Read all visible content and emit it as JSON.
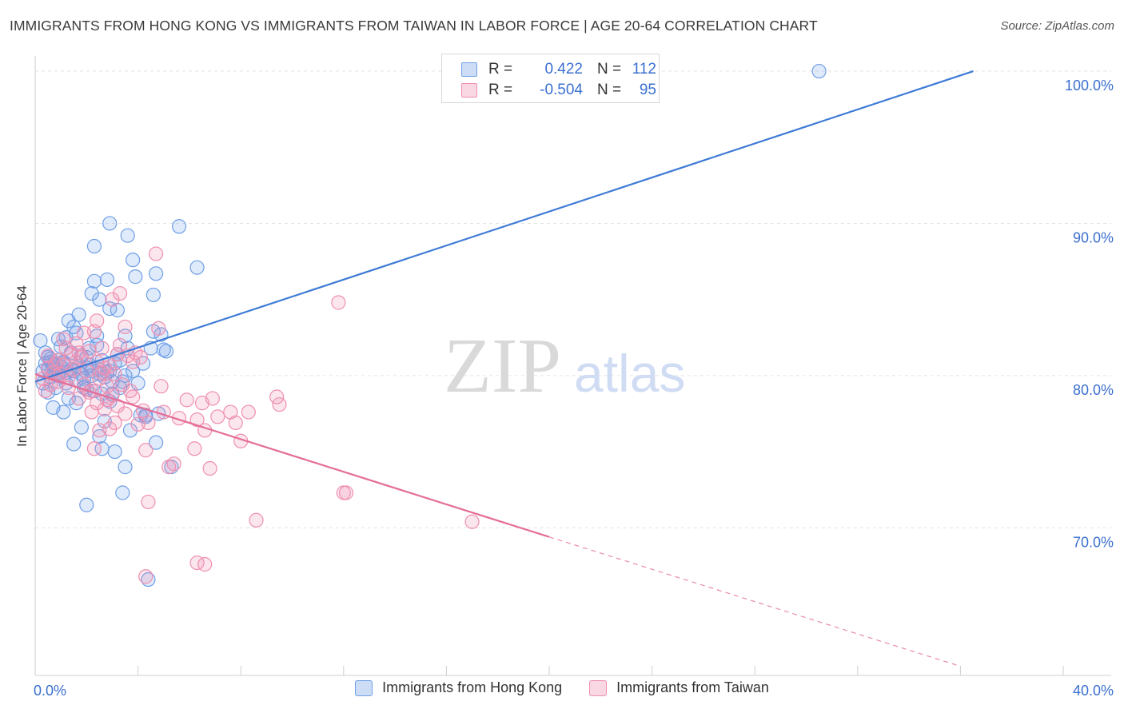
{
  "title": "IMMIGRANTS FROM HONG KONG VS IMMIGRANTS FROM TAIWAN IN LABOR FORCE | AGE 20-64 CORRELATION CHART",
  "source": "Source: ZipAtlas.com",
  "watermark": {
    "zip": "ZIP",
    "atlas": "atlas"
  },
  "legend_top": {
    "rows": [
      {
        "r_label": "R =",
        "r_value": "0.422",
        "n_label": "N =",
        "n_value": "112",
        "color": "#6f9fe6"
      },
      {
        "r_label": "R =",
        "r_value": "-0.504",
        "n_label": "N =",
        "n_value": "95",
        "color": "#ef8fb0"
      }
    ]
  },
  "chart_data": {
    "type": "scatter",
    "title": "IMMIGRANTS FROM HONG KONG VS IMMIGRANTS FROM TAIWAN IN LABOR FORCE | AGE 20-64 CORRELATION CHART",
    "xlabel": "",
    "ylabel": "In Labor Force | Age 20-64",
    "xlim": [
      0,
      40
    ],
    "ylim": [
      60.3,
      101.0
    ],
    "x_tick_labels": [
      "0.0%",
      "40.0%"
    ],
    "y_ticks": [
      70,
      80,
      90,
      100
    ],
    "y_tick_labels": [
      "70.0%",
      "80.0%",
      "90.0%",
      "100.0%"
    ],
    "grid": true,
    "legend_placement": "bottom",
    "series": [
      {
        "name": "Immigrants from Hong Kong",
        "color": "#6f9fe6",
        "r": 0.422,
        "n": 112,
        "trend": {
          "x": [
            0,
            36.5
          ],
          "y": [
            79.6,
            100.0
          ],
          "dashed_from": null
        },
        "points": [
          [
            0.3,
            80.3
          ],
          [
            0.4,
            80.8
          ],
          [
            0.5,
            81.2
          ],
          [
            0.6,
            79.9
          ],
          [
            0.7,
            80.5
          ],
          [
            0.8,
            80.1
          ],
          [
            0.9,
            81.0
          ],
          [
            1.0,
            80.6
          ],
          [
            0.3,
            79.5
          ],
          [
            0.5,
            78.9
          ],
          [
            0.7,
            77.9
          ],
          [
            0.2,
            82.3
          ],
          [
            0.9,
            82.4
          ],
          [
            1.1,
            80.9
          ],
          [
            1.2,
            80.2
          ],
          [
            1.4,
            81.5
          ],
          [
            1.5,
            83.2
          ],
          [
            1.3,
            83.6
          ],
          [
            1.7,
            84.0
          ],
          [
            1.6,
            82.8
          ],
          [
            1.8,
            81.3
          ],
          [
            2.0,
            80.5
          ],
          [
            2.1,
            81.8
          ],
          [
            2.2,
            80.0
          ],
          [
            1.9,
            79.2
          ],
          [
            1.6,
            78.2
          ],
          [
            1.1,
            77.6
          ],
          [
            1.8,
            76.6
          ],
          [
            1.5,
            75.5
          ],
          [
            2.3,
            79.0
          ],
          [
            2.5,
            80.1
          ],
          [
            2.6,
            81.0
          ],
          [
            2.4,
            82.0
          ],
          [
            2.8,
            80.2
          ],
          [
            3.0,
            79.6
          ],
          [
            3.2,
            81.4
          ],
          [
            3.5,
            82.6
          ],
          [
            3.6,
            81.8
          ],
          [
            2.9,
            78.3
          ],
          [
            2.7,
            77.0
          ],
          [
            2.5,
            76.0
          ],
          [
            2.6,
            75.2
          ],
          [
            3.1,
            75.0
          ],
          [
            3.5,
            74.0
          ],
          [
            3.4,
            72.3
          ],
          [
            2.0,
            71.5
          ],
          [
            3.0,
            78.8
          ],
          [
            3.3,
            79.2
          ],
          [
            4.0,
            79.5
          ],
          [
            4.2,
            80.8
          ],
          [
            4.5,
            81.8
          ],
          [
            4.6,
            82.9
          ],
          [
            5.0,
            81.7
          ],
          [
            4.8,
            77.5
          ],
          [
            4.1,
            77.4
          ],
          [
            4.3,
            77.4
          ],
          [
            4.7,
            75.6
          ],
          [
            5.3,
            74.0
          ],
          [
            2.3,
            86.2
          ],
          [
            2.2,
            85.4
          ],
          [
            2.5,
            85.0
          ],
          [
            2.9,
            84.4
          ],
          [
            3.2,
            84.3
          ],
          [
            2.8,
            86.3
          ],
          [
            3.9,
            86.5
          ],
          [
            4.6,
            85.3
          ],
          [
            4.7,
            86.7
          ],
          [
            3.8,
            87.6
          ],
          [
            6.3,
            87.1
          ],
          [
            2.3,
            88.5
          ],
          [
            3.6,
            89.2
          ],
          [
            2.9,
            90.0
          ],
          [
            5.6,
            89.8
          ],
          [
            4.4,
            66.6
          ],
          [
            3.5,
            80.0
          ],
          [
            2.9,
            80.3
          ],
          [
            1.9,
            79.8
          ],
          [
            1.2,
            79.5
          ],
          [
            0.9,
            80.0
          ],
          [
            0.6,
            80.9
          ],
          [
            0.4,
            81.5
          ],
          [
            1.4,
            80.4
          ],
          [
            2.1,
            80.7
          ],
          [
            2.7,
            79.9
          ],
          [
            3.8,
            80.3
          ],
          [
            1.0,
            81.9
          ],
          [
            2.6,
            78.8
          ],
          [
            3.4,
            79.6
          ],
          [
            1.2,
            82.5
          ],
          [
            4.3,
            77.3
          ],
          [
            1.7,
            80.6
          ],
          [
            2.0,
            79.1
          ],
          [
            3.7,
            76.4
          ],
          [
            0.8,
            79.2
          ],
          [
            1.3,
            78.5
          ],
          [
            2.4,
            82.6
          ],
          [
            5.1,
            81.6
          ],
          [
            4.9,
            82.7
          ],
          [
            3.1,
            80.8
          ],
          [
            1.6,
            79.7
          ],
          [
            0.5,
            80.4
          ],
          [
            2.2,
            80.3
          ],
          [
            0.6,
            81.1
          ],
          [
            1.8,
            80.1
          ],
          [
            3.3,
            81.0
          ],
          [
            1.1,
            80.8
          ],
          [
            2.5,
            80.4
          ],
          [
            0.9,
            80.2
          ],
          [
            1.5,
            80.3
          ],
          [
            2.0,
            81.2
          ],
          [
            0.7,
            80.7
          ],
          [
            30.5,
            100.0
          ]
        ]
      },
      {
        "name": "Immigrants from Taiwan",
        "color": "#ef8fb0",
        "r": -0.504,
        "n": 95,
        "trend": {
          "x": [
            0,
            20.0,
            36.0
          ],
          "y": [
            80.1,
            69.4,
            60.9
          ],
          "dashed_from": 20.0
        },
        "points": [
          [
            0.3,
            79.8
          ],
          [
            0.5,
            80.5
          ],
          [
            0.7,
            80.2
          ],
          [
            0.9,
            81.0
          ],
          [
            1.1,
            80.7
          ],
          [
            1.3,
            79.9
          ],
          [
            1.5,
            80.4
          ],
          [
            1.7,
            81.5
          ],
          [
            1.9,
            82.8
          ],
          [
            2.1,
            81.6
          ],
          [
            2.4,
            80.9
          ],
          [
            2.6,
            80.2
          ],
          [
            2.8,
            79.3
          ],
          [
            3.0,
            78.7
          ],
          [
            3.2,
            78.0
          ],
          [
            3.4,
            79.4
          ],
          [
            3.6,
            81.3
          ],
          [
            3.8,
            80.9
          ],
          [
            3.9,
            81.5
          ],
          [
            2.4,
            78.2
          ],
          [
            2.2,
            77.6
          ],
          [
            2.5,
            76.4
          ],
          [
            2.3,
            75.2
          ],
          [
            2.7,
            77.8
          ],
          [
            3.1,
            76.9
          ],
          [
            4.0,
            76.8
          ],
          [
            4.3,
            75.1
          ],
          [
            4.4,
            76.9
          ],
          [
            4.2,
            77.7
          ],
          [
            4.9,
            79.3
          ],
          [
            5.0,
            77.6
          ],
          [
            5.2,
            74.0
          ],
          [
            5.6,
            77.2
          ],
          [
            5.9,
            78.4
          ],
          [
            6.2,
            75.2
          ],
          [
            6.3,
            77.1
          ],
          [
            6.5,
            78.2
          ],
          [
            6.6,
            76.4
          ],
          [
            6.8,
            73.9
          ],
          [
            6.9,
            78.5
          ],
          [
            7.1,
            77.3
          ],
          [
            7.6,
            77.6
          ],
          [
            7.8,
            76.9
          ],
          [
            8.0,
            75.7
          ],
          [
            8.3,
            77.6
          ],
          [
            8.6,
            70.5
          ],
          [
            9.4,
            78.6
          ],
          [
            9.5,
            78.1
          ],
          [
            11.8,
            84.8
          ],
          [
            12.1,
            72.3
          ],
          [
            17.0,
            70.4
          ],
          [
            4.4,
            71.7
          ],
          [
            4.7,
            88.0
          ],
          [
            3.3,
            85.4
          ],
          [
            3.5,
            83.2
          ],
          [
            4.8,
            83.1
          ],
          [
            1.6,
            82.1
          ],
          [
            2.3,
            82.9
          ],
          [
            6.3,
            67.7
          ],
          [
            6.6,
            67.6
          ],
          [
            4.3,
            66.8
          ],
          [
            1.2,
            81.8
          ],
          [
            1.8,
            81.2
          ],
          [
            2.2,
            79.0
          ],
          [
            0.8,
            80.8
          ],
          [
            1.0,
            80.1
          ],
          [
            0.6,
            79.4
          ],
          [
            2.9,
            80.6
          ],
          [
            3.1,
            80.1
          ],
          [
            1.4,
            81.4
          ],
          [
            2.0,
            80.3
          ],
          [
            3.7,
            79.0
          ],
          [
            2.6,
            81.8
          ],
          [
            0.4,
            79.0
          ],
          [
            1.9,
            79.4
          ],
          [
            2.8,
            78.4
          ],
          [
            3.5,
            77.5
          ],
          [
            1.6,
            80.9
          ],
          [
            0.9,
            79.6
          ],
          [
            2.1,
            78.9
          ],
          [
            2.4,
            83.6
          ],
          [
            3.0,
            85.0
          ],
          [
            1.1,
            82.4
          ],
          [
            3.3,
            82.0
          ],
          [
            4.1,
            81.2
          ],
          [
            2.7,
            80.5
          ],
          [
            0.5,
            81.3
          ],
          [
            1.3,
            79.2
          ],
          [
            3.8,
            78.6
          ],
          [
            5.4,
            74.2
          ],
          [
            12.0,
            72.3
          ],
          [
            2.9,
            76.5
          ],
          [
            1.7,
            78.5
          ],
          [
            3.2,
            81.4
          ],
          [
            2.5,
            79.8
          ]
        ]
      }
    ]
  }
}
